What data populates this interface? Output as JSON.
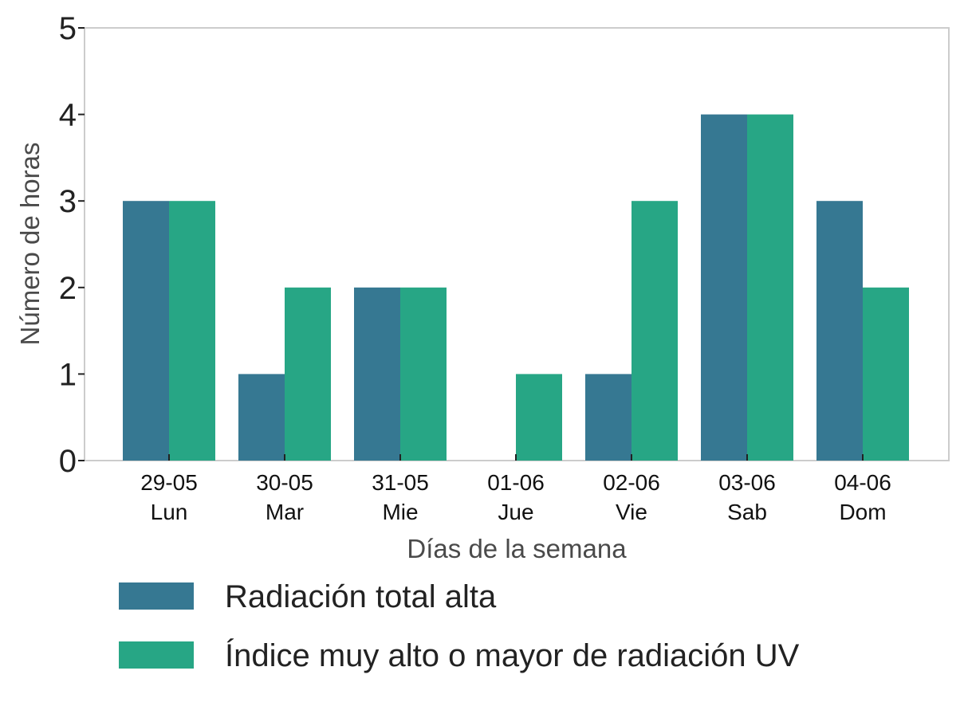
{
  "chart_data": {
    "type": "bar",
    "title": "",
    "xlabel": "Días de la semana",
    "ylabel": "Número de horas",
    "ylim": [
      0,
      5
    ],
    "yticks": [
      "0",
      "1",
      "2",
      "3",
      "4",
      "5"
    ],
    "categories": [
      [
        "29-05",
        "Lun"
      ],
      [
        "30-05",
        "Mar"
      ],
      [
        "31-05",
        "Mie"
      ],
      [
        "01-06",
        "Jue"
      ],
      [
        "02-06",
        "Vie"
      ],
      [
        "03-06",
        "Sab"
      ],
      [
        "04-06",
        "Dom"
      ]
    ],
    "series": [
      {
        "name": "Radiación total alta",
        "color": "#367892",
        "values": [
          3,
          1,
          2,
          0,
          1,
          4,
          3
        ]
      },
      {
        "name": "Índice muy alto o mayor de radiación UV",
        "color": "#27a685",
        "values": [
          3,
          2,
          2,
          1,
          3,
          4,
          2
        ]
      }
    ],
    "grid": false,
    "legend_position": "bottom"
  }
}
